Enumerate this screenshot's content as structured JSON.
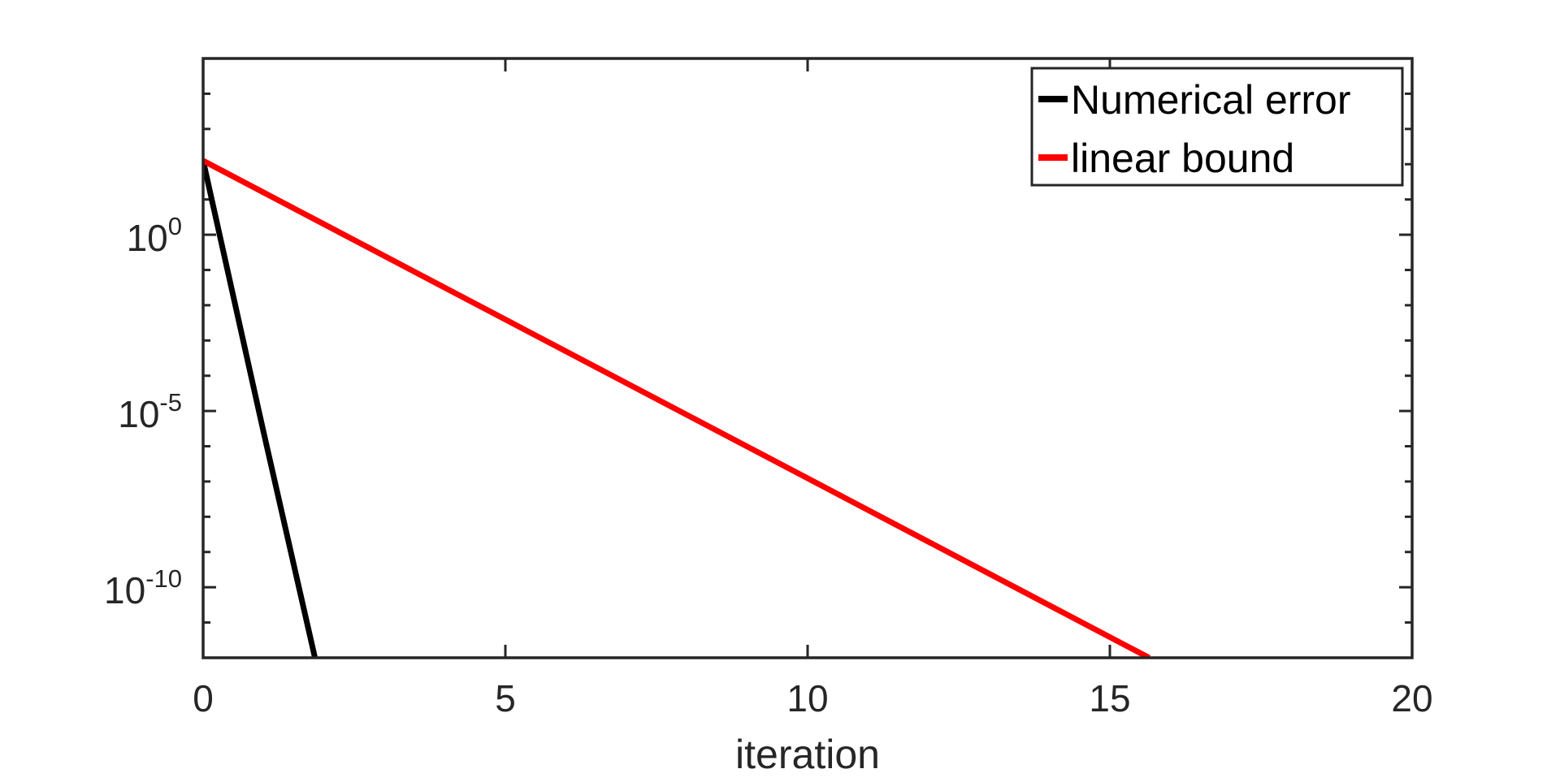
{
  "chart_data": {
    "type": "line",
    "title": "",
    "xlabel": "iteration",
    "ylabel": "",
    "xlim": [
      0,
      20
    ],
    "ylim_log10": [
      -12,
      5
    ],
    "y_scale": "log",
    "grid": false,
    "legend_position": "top-right",
    "x_ticks": [
      {
        "value": 0,
        "label": "0"
      },
      {
        "value": 5,
        "label": "5"
      },
      {
        "value": 10,
        "label": "10"
      },
      {
        "value": 15,
        "label": "15"
      },
      {
        "value": 20,
        "label": "20"
      }
    ],
    "y_ticks": [
      {
        "exponent": 0,
        "base": "10",
        "exp_label": "0"
      },
      {
        "exponent": -5,
        "base": "10",
        "exp_label": "-5"
      },
      {
        "exponent": -10,
        "base": "10",
        "exp_label": "-10"
      }
    ],
    "series": [
      {
        "name": "Numerical error",
        "color": "#000000",
        "x": [
          0,
          1,
          1.85
        ],
        "y_log10": [
          2.1,
          -5.6,
          -12
        ]
      },
      {
        "name": "linear bound",
        "color": "#ff0000",
        "x": [
          0,
          15.65
        ],
        "y_log10": [
          2.1,
          -12
        ]
      }
    ]
  }
}
